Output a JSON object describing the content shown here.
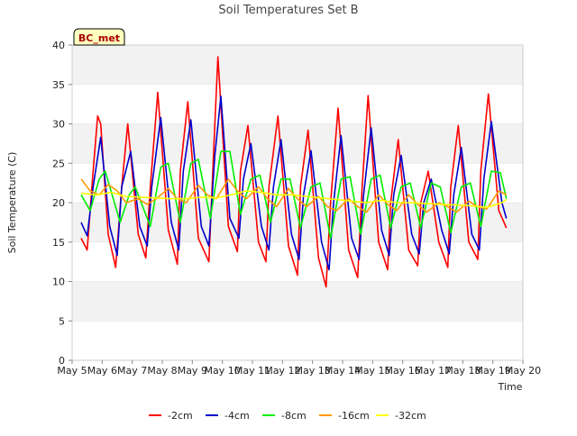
{
  "chart_data": {
    "type": "line",
    "title": "Soil Temperatures Set B",
    "xlabel": "Time",
    "ylabel": "Soil Temperature (C)",
    "badge": "BC_met",
    "xlim": [
      5,
      20
    ],
    "ylim": [
      0,
      40
    ],
    "grid": "horizontal bands",
    "legend_position": "bottom",
    "x_ticks": [
      {
        "v": 5,
        "label": "May 5"
      },
      {
        "v": 6,
        "label": "May 6"
      },
      {
        "v": 7,
        "label": "May 7"
      },
      {
        "v": 8,
        "label": "May 8"
      },
      {
        "v": 9,
        "label": "May 9"
      },
      {
        "v": 10,
        "label": "May 10"
      },
      {
        "v": 11,
        "label": "May 11"
      },
      {
        "v": 12,
        "label": "May 12"
      },
      {
        "v": 13,
        "label": "May 13"
      },
      {
        "v": 14,
        "label": "May 14"
      },
      {
        "v": 15,
        "label": "May 15"
      },
      {
        "v": 16,
        "label": "May 16"
      },
      {
        "v": 17,
        "label": "May 17"
      },
      {
        "v": 18,
        "label": "May 18"
      },
      {
        "v": 19,
        "label": "May 19"
      },
      {
        "v": 20,
        "label": "May 20"
      }
    ],
    "y_ticks": [
      0,
      5,
      10,
      15,
      20,
      25,
      30,
      35,
      40
    ],
    "series": [
      {
        "name": "-2cm",
        "color": "#ff0000",
        "x": [
          5.3,
          5.5,
          5.7,
          5.85,
          5.95,
          6.2,
          6.45,
          6.65,
          6.85,
          7.2,
          7.45,
          7.6,
          7.85,
          8.2,
          8.5,
          8.6,
          8.85,
          9.2,
          9.55,
          9.75,
          9.85,
          10.2,
          10.5,
          10.6,
          10.85,
          11.2,
          11.45,
          11.55,
          11.85,
          12.2,
          12.5,
          12.6,
          12.85,
          13.2,
          13.45,
          13.6,
          13.85,
          14.2,
          14.5,
          14.65,
          14.85,
          15.2,
          15.5,
          15.6,
          15.85,
          16.2,
          16.5,
          16.6,
          16.85,
          17.2,
          17.5,
          17.6,
          17.85,
          18.2,
          18.5,
          18.6,
          18.85,
          19.2,
          19.45,
          19.6
        ],
        "y": [
          15.5,
          14.0,
          24.0,
          31.0,
          30.0,
          16.0,
          11.8,
          22.0,
          30.0,
          16.0,
          13.0,
          22.0,
          34.0,
          16.5,
          12.2,
          24.0,
          32.8,
          15.5,
          12.5,
          30.0,
          38.5,
          17.0,
          13.8,
          24.0,
          29.8,
          15.0,
          12.5,
          22.0,
          31.0,
          14.5,
          10.8,
          22.0,
          29.2,
          13.0,
          9.3,
          20.0,
          32.0,
          14.0,
          10.5,
          22.0,
          33.6,
          15.0,
          11.5,
          20.0,
          28.0,
          14.0,
          12.0,
          20.0,
          24.0,
          15.0,
          11.8,
          22.0,
          29.8,
          15.0,
          12.8,
          24.0,
          33.8,
          19.0,
          16.8,
          null
        ]
      },
      {
        "name": "-4cm",
        "color": "#0000cc",
        "x": [
          5.3,
          5.5,
          5.7,
          5.95,
          6.25,
          6.5,
          6.65,
          6.95,
          7.25,
          7.5,
          7.65,
          7.95,
          8.3,
          8.55,
          8.7,
          8.95,
          9.3,
          9.55,
          9.75,
          9.95,
          10.25,
          10.55,
          10.7,
          10.95,
          11.3,
          11.55,
          11.7,
          11.95,
          12.3,
          12.55,
          12.7,
          12.95,
          13.3,
          13.55,
          13.7,
          13.95,
          14.3,
          14.55,
          14.7,
          14.95,
          15.3,
          15.55,
          15.7,
          15.95,
          16.3,
          16.55,
          16.7,
          16.95,
          17.3,
          17.55,
          17.7,
          17.95,
          18.3,
          18.55,
          18.7,
          18.95,
          19.3,
          19.45
        ],
        "y": [
          17.5,
          15.8,
          22.0,
          28.3,
          17.0,
          13.3,
          22.0,
          26.5,
          17.0,
          14.5,
          22.0,
          30.8,
          17.5,
          14.0,
          24.0,
          30.5,
          17.0,
          14.5,
          26.0,
          33.5,
          18.0,
          15.5,
          23.0,
          27.5,
          17.0,
          14.0,
          22.0,
          28.0,
          16.0,
          12.8,
          21.0,
          26.6,
          15.0,
          11.5,
          20.0,
          28.5,
          15.5,
          12.8,
          21.0,
          29.5,
          16.5,
          13.3,
          21.0,
          26.0,
          16.0,
          13.5,
          20.0,
          23.0,
          16.5,
          13.5,
          21.0,
          27.0,
          16.0,
          14.0,
          23.0,
          30.3,
          20.0,
          18.0
        ]
      },
      {
        "name": "-8cm",
        "color": "#00ee00",
        "x": [
          5.3,
          5.6,
          5.9,
          6.1,
          6.6,
          6.9,
          7.1,
          7.6,
          7.95,
          8.2,
          8.6,
          8.95,
          9.2,
          9.6,
          9.95,
          10.25,
          10.6,
          10.95,
          11.25,
          11.6,
          11.95,
          12.25,
          12.6,
          12.95,
          13.25,
          13.6,
          13.95,
          14.25,
          14.6,
          14.95,
          15.25,
          15.6,
          15.95,
          16.25,
          16.6,
          16.95,
          17.25,
          17.6,
          17.95,
          18.25,
          18.6,
          18.95,
          19.25,
          19.45
        ],
        "y": [
          21.0,
          19.0,
          23.0,
          24.0,
          17.5,
          21.0,
          22.0,
          17.0,
          24.5,
          25.0,
          17.5,
          25.0,
          25.5,
          18.0,
          26.5,
          26.5,
          18.5,
          23.0,
          23.5,
          17.5,
          23.0,
          23.0,
          16.8,
          22.0,
          22.5,
          15.5,
          23.0,
          23.3,
          16.0,
          23.0,
          23.5,
          16.8,
          22.0,
          22.5,
          16.8,
          22.5,
          22.0,
          16.2,
          22.0,
          22.5,
          17.0,
          24.0,
          23.8,
          20.5
        ]
      },
      {
        "name": "-16cm",
        "color": "#ff9900",
        "x": [
          5.3,
          5.6,
          5.9,
          6.2,
          6.5,
          6.8,
          7.2,
          7.5,
          7.8,
          8.2,
          8.5,
          8.8,
          9.2,
          9.5,
          9.8,
          10.2,
          10.5,
          10.8,
          11.2,
          11.5,
          11.8,
          12.2,
          12.5,
          12.8,
          13.2,
          13.5,
          13.8,
          14.2,
          14.5,
          14.8,
          15.2,
          15.5,
          15.8,
          16.2,
          16.5,
          16.8,
          17.2,
          17.5,
          17.8,
          18.2,
          18.5,
          18.8,
          19.2,
          19.45
        ],
        "y": [
          23.0,
          21.5,
          21.0,
          22.3,
          21.5,
          20.0,
          20.5,
          19.8,
          20.5,
          21.8,
          20.5,
          20.0,
          22.2,
          21.0,
          20.5,
          23.0,
          21.5,
          20.5,
          22.0,
          20.5,
          19.5,
          21.8,
          20.5,
          19.5,
          20.8,
          19.5,
          19.0,
          20.5,
          19.5,
          18.8,
          21.0,
          19.8,
          19.0,
          21.0,
          19.8,
          18.8,
          20.0,
          19.5,
          18.8,
          20.2,
          19.5,
          19.2,
          21.5,
          21.0
        ]
      },
      {
        "name": "-32cm",
        "color": "#ffff00",
        "x": [
          5.3,
          5.8,
          6.3,
          6.8,
          7.3,
          7.8,
          8.3,
          8.8,
          9.3,
          9.8,
          10.3,
          10.8,
          11.3,
          11.8,
          12.3,
          12.8,
          13.3,
          13.8,
          14.3,
          14.8,
          15.3,
          15.8,
          16.3,
          16.8,
          17.3,
          17.8,
          18.3,
          18.8,
          19.3,
          19.45
        ],
        "y": [
          21.2,
          21.0,
          21.3,
          20.8,
          20.7,
          20.6,
          20.5,
          20.5,
          20.7,
          20.6,
          21.0,
          21.5,
          21.3,
          21.0,
          21.0,
          20.8,
          20.6,
          20.4,
          20.2,
          20.0,
          20.3,
          20.0,
          20.0,
          19.9,
          19.8,
          19.7,
          19.6,
          19.4,
          20.0,
          20.4
        ]
      }
    ]
  }
}
